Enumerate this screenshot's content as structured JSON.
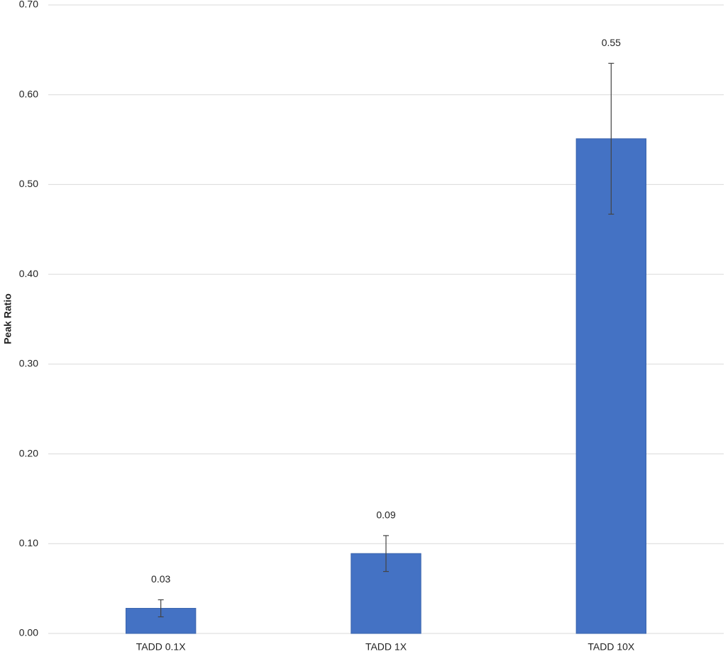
{
  "chart_data": {
    "type": "bar",
    "y_label": "Peak Ratio",
    "categories": [
      "TADD 0.1X",
      "TADD 1X",
      "TADD 10X"
    ],
    "values": [
      0.028,
      0.089,
      0.551
    ],
    "value_labels": [
      "0.03",
      "0.09",
      "0.55"
    ],
    "errors": [
      0.0095,
      0.02,
      0.084
    ],
    "color": "#4472c4",
    "ylim": [
      0,
      0.7
    ],
    "yticks": [
      {
        "value": 0,
        "label": "0.00"
      },
      {
        "value": 0.1,
        "label": "0.10"
      },
      {
        "value": 0.2,
        "label": "0.20"
      },
      {
        "value": 0.3,
        "label": "0.30"
      },
      {
        "value": 0.4,
        "label": "0.40"
      },
      {
        "value": 0.5,
        "label": "0.50"
      },
      {
        "value": 0.6,
        "label": "0.60"
      },
      {
        "value": 0.7,
        "label": "0.70"
      }
    ],
    "grid": true
  }
}
